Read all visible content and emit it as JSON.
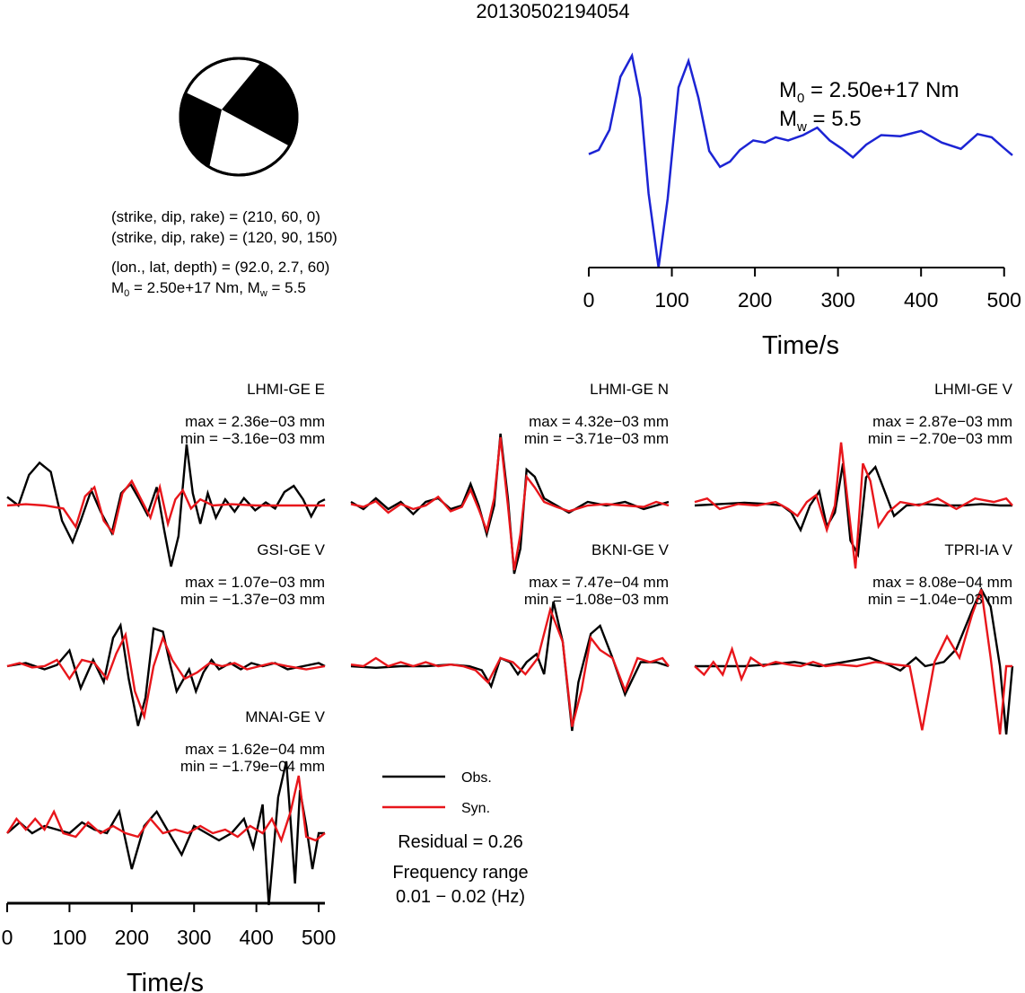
{
  "title": "20130502194054",
  "mechanism": {
    "plane1": "(strike, dip, rake) = (210, 60, 0)",
    "plane2": "(strike, dip, rake) = (120, 90, 150)",
    "location": "(lon., lat, depth) = (92.0, 2.7, 60)",
    "moment_prefix": "M",
    "moment_sub": "0",
    "moment_mid": " = 2.50e+17 Nm, M",
    "mw_sub": "w",
    "mw_suffix": " = 5.5"
  },
  "stf": {
    "m0_label": "M",
    "m0_sub": "0",
    "m0_value": " = 2.50e+17 Nm",
    "mw_label": "M",
    "mw_sub": "w",
    "mw_value": " = 5.5"
  },
  "legend": {
    "obs": "Obs.",
    "syn": "Syn.",
    "residual": "Residual = 0.26",
    "freq_title": "Frequency range",
    "freq_value": "0.01 − 0.02 (Hz)"
  },
  "colors": {
    "obs": "#000000",
    "syn": "#e8161b",
    "stf": "#1c24d4"
  },
  "chart_data": [
    {
      "type": "line",
      "name": "source-time-function",
      "xlabel": "Time/s",
      "xlim": [
        0,
        510
      ],
      "xticks": [
        0,
        100,
        200,
        300,
        400,
        500
      ],
      "series": [
        {
          "x": [
            0,
            12,
            25,
            38,
            52,
            62,
            72,
            84,
            95,
            108,
            120,
            132,
            145,
            158,
            170,
            182,
            198,
            212,
            225,
            240,
            258,
            275,
            290,
            305,
            318,
            334,
            352,
            375,
            400,
            425,
            448,
            468,
            485,
            498,
            510
          ],
          "y": [
            0.07,
            0.11,
            0.3,
            0.8,
            1.0,
            0.6,
            -0.3,
            -1.0,
            -0.35,
            0.7,
            0.95,
            0.6,
            0.1,
            -0.05,
            0.0,
            0.11,
            0.2,
            0.18,
            0.23,
            0.2,
            0.25,
            0.32,
            0.2,
            0.12,
            0.04,
            0.16,
            0.25,
            0.24,
            0.29,
            0.18,
            0.12,
            0.26,
            0.23,
            0.14,
            0.06
          ]
        }
      ]
    },
    {
      "type": "line",
      "name": "LHMI-GE E",
      "station": "LHMI-GE E",
      "max": "max = 2.36e−03 mm",
      "min": "min = −3.16e−03 mm",
      "xlim": [
        0,
        510
      ],
      "obs": {
        "x": [
          0,
          18,
          35,
          52,
          70,
          88,
          105,
          118,
          135,
          150,
          168,
          183,
          198,
          212,
          225,
          240,
          252,
          263,
          275,
          280,
          288,
          298,
          310,
          322,
          335,
          350,
          365,
          380,
          398,
          415,
          430,
          445,
          460,
          475,
          488,
          500,
          510
        ],
        "y": [
          0.14,
          0.0,
          0.5,
          0.7,
          0.55,
          -0.25,
          -0.6,
          -0.25,
          0.25,
          -0.1,
          -0.45,
          0.2,
          0.35,
          0.1,
          -0.15,
          0.3,
          -0.4,
          -1.0,
          -0.5,
          0.1,
          1.0,
          0.2,
          -0.3,
          0.2,
          -0.2,
          0.1,
          -0.1,
          0.12,
          -0.08,
          0.05,
          -0.05,
          0.22,
          0.32,
          0.1,
          -0.18,
          0.05,
          0.1
        ]
      },
      "syn": {
        "x": [
          0,
          30,
          60,
          90,
          110,
          125,
          140,
          155,
          170,
          185,
          200,
          215,
          230,
          245,
          258,
          270,
          282,
          295,
          310,
          330,
          360,
          400,
          450,
          510
        ],
        "y": [
          0.0,
          0.02,
          0.0,
          -0.05,
          -0.35,
          0.15,
          0.3,
          -0.25,
          -0.45,
          0.2,
          0.4,
          0.1,
          -0.2,
          0.3,
          -0.3,
          0.1,
          0.25,
          -0.05,
          0.1,
          0.0,
          0.02,
          0.0,
          0.0,
          0.0
        ]
      }
    },
    {
      "type": "line",
      "name": "LHMI-GE N",
      "station": "LHMI-GE N",
      "max": "max = 4.32e−03 mm",
      "min": "min = −3.71e−03 mm",
      "xlim": [
        0,
        510
      ],
      "obs": {
        "x": [
          0,
          20,
          40,
          60,
          80,
          100,
          120,
          140,
          160,
          178,
          192,
          205,
          218,
          230,
          240,
          252,
          262,
          272,
          282,
          295,
          310,
          330,
          350,
          380,
          410,
          440,
          470,
          490,
          510
        ],
        "y": [
          0.05,
          -0.05,
          0.1,
          -0.05,
          0.05,
          -0.12,
          0.05,
          0.1,
          -0.05,
          0.0,
          0.3,
          0.0,
          -0.4,
          0.0,
          1.0,
          0.1,
          -0.95,
          -0.6,
          0.5,
          0.4,
          0.1,
          0.0,
          -0.1,
          0.05,
          0.0,
          0.05,
          -0.05,
          0.0,
          0.05
        ]
      },
      "syn": {
        "x": [
          0,
          20,
          40,
          60,
          80,
          100,
          120,
          140,
          160,
          178,
          192,
          205,
          218,
          230,
          240,
          252,
          262,
          272,
          282,
          295,
          310,
          330,
          350,
          380,
          410,
          440,
          470,
          490,
          510
        ],
        "y": [
          0.02,
          -0.02,
          0.06,
          -0.1,
          0.02,
          -0.05,
          0.0,
          0.12,
          -0.08,
          -0.02,
          0.22,
          -0.05,
          -0.35,
          0.1,
          0.95,
          0.0,
          -0.9,
          -0.4,
          0.4,
          0.25,
          0.05,
          -0.02,
          -0.08,
          0.0,
          0.02,
          0.0,
          -0.02,
          0.05,
          0.0
        ]
      }
    },
    {
      "type": "line",
      "name": "LHMI-GE V",
      "station": "LHMI-GE V",
      "max": "max = 2.87e−03 mm",
      "min": "min = −2.70e−03 mm",
      "xlim": [
        0,
        510
      ],
      "obs": {
        "x": [
          0,
          40,
          80,
          120,
          140,
          155,
          170,
          185,
          200,
          212,
          225,
          238,
          250,
          262,
          275,
          290,
          305,
          320,
          340,
          370,
          400,
          430,
          460,
          490,
          510
        ],
        "y": [
          0.0,
          0.02,
          0.04,
          0.02,
          0.0,
          -0.1,
          -0.35,
          0.0,
          0.2,
          -0.3,
          -0.1,
          0.6,
          -0.5,
          -0.7,
          0.4,
          0.55,
          0.2,
          -0.15,
          0.0,
          0.02,
          0.0,
          0.0,
          0.02,
          0.0,
          0.0
        ]
      },
      "syn": {
        "x": [
          0,
          20,
          40,
          70,
          100,
          130,
          150,
          165,
          180,
          195,
          212,
          225,
          235,
          245,
          258,
          270,
          282,
          295,
          310,
          330,
          360,
          390,
          420,
          450,
          480,
          500,
          510
        ],
        "y": [
          0.05,
          0.1,
          -0.05,
          0.02,
          0.0,
          0.05,
          -0.05,
          -0.15,
          0.05,
          0.15,
          -0.35,
          0.0,
          0.9,
          0.1,
          -0.9,
          0.6,
          0.35,
          -0.3,
          -0.1,
          0.05,
          0.0,
          0.1,
          -0.05,
          0.1,
          0.05,
          0.1,
          0.0
        ]
      }
    },
    {
      "type": "line",
      "name": "GSI-GE V",
      "station": "GSI-GE V",
      "max": "max = 1.07e−03 mm",
      "min": "min = −1.37e−03 mm",
      "xlim": [
        0,
        510
      ],
      "obs": {
        "x": [
          0,
          30,
          60,
          80,
          100,
          118,
          138,
          155,
          170,
          182,
          195,
          210,
          222,
          235,
          250,
          260,
          272,
          292,
          303,
          315,
          328,
          340,
          358,
          375,
          392,
          410,
          430,
          450,
          475,
          500,
          510
        ],
        "y": [
          0.0,
          0.05,
          -0.05,
          0.02,
          0.25,
          -0.35,
          0.1,
          -0.25,
          0.45,
          0.65,
          -0.2,
          -0.95,
          -0.5,
          0.6,
          0.55,
          0.1,
          -0.4,
          -0.05,
          -0.4,
          -0.1,
          0.1,
          -0.05,
          0.05,
          -0.05,
          0.05,
          0.0,
          0.05,
          -0.05,
          0.0,
          0.05,
          0.0
        ]
      },
      "syn": {
        "x": [
          0,
          20,
          40,
          60,
          80,
          100,
          120,
          140,
          160,
          175,
          190,
          205,
          220,
          235,
          250,
          265,
          285,
          305,
          325,
          345,
          365,
          385,
          405,
          425,
          450,
          480,
          510
        ],
        "y": [
          0.0,
          0.05,
          -0.02,
          0.0,
          0.1,
          -0.2,
          0.1,
          0.05,
          -0.2,
          0.2,
          0.5,
          -0.4,
          -0.8,
          0.0,
          0.45,
          0.1,
          -0.2,
          -0.1,
          0.05,
          0.0,
          0.05,
          -0.05,
          0.0,
          0.05,
          0.0,
          -0.05,
          0.0
        ]
      }
    },
    {
      "type": "line",
      "name": "BKNI-GE V",
      "station": "BKNI-GE V",
      "max": "max = 7.47e−04 mm",
      "min": "min = −1.08e−03 mm",
      "xlim": [
        0,
        510
      ],
      "obs": {
        "x": [
          0,
          40,
          80,
          120,
          160,
          190,
          210,
          225,
          240,
          255,
          268,
          282,
          298,
          310,
          325,
          340,
          355,
          365,
          385,
          400,
          420,
          440,
          465,
          490,
          510
        ],
        "y": [
          0.0,
          -0.02,
          0.0,
          0.0,
          0.02,
          0.0,
          -0.05,
          -0.25,
          0.1,
          0.05,
          -0.1,
          0.05,
          0.15,
          -0.1,
          0.8,
          0.3,
          -0.8,
          -0.2,
          0.4,
          0.5,
          0.1,
          -0.35,
          0.05,
          0.05,
          0.0
        ]
      },
      "syn": {
        "x": [
          0,
          20,
          40,
          60,
          80,
          100,
          120,
          140,
          160,
          180,
          200,
          220,
          240,
          260,
          280,
          300,
          320,
          340,
          355,
          370,
          385,
          400,
          420,
          440,
          460,
          480,
          500,
          510
        ],
        "y": [
          0.02,
          0.0,
          0.1,
          0.0,
          0.05,
          0.0,
          0.05,
          0.0,
          0.02,
          0.0,
          -0.05,
          -0.2,
          0.1,
          0.05,
          -0.1,
          0.1,
          0.7,
          0.3,
          -0.75,
          -0.3,
          0.35,
          0.2,
          0.1,
          -0.3,
          0.1,
          0.05,
          0.1,
          0.0
        ]
      }
    },
    {
      "type": "line",
      "name": "TPRI-IA V",
      "station": "TPRI-IA V",
      "max": "max = 8.08e−04 mm",
      "min": "min = −1.04e−03 mm",
      "xlim": [
        0,
        510
      ],
      "obs": {
        "x": [
          0,
          40,
          80,
          120,
          160,
          200,
          240,
          280,
          310,
          330,
          355,
          370,
          400,
          420,
          445,
          460,
          475,
          490,
          500,
          510
        ],
        "y": [
          0.0,
          0.0,
          0.0,
          0.02,
          0.05,
          0.0,
          0.05,
          0.1,
          0.02,
          -0.05,
          0.1,
          0.0,
          0.05,
          0.2,
          0.65,
          0.9,
          0.7,
          0.0,
          -0.8,
          0.0
        ]
      },
      "syn": {
        "x": [
          0,
          15,
          30,
          45,
          60,
          75,
          90,
          110,
          130,
          150,
          170,
          190,
          210,
          230,
          260,
          290,
          320,
          345,
          365,
          385,
          405,
          425,
          445,
          460,
          475,
          490,
          500,
          510
        ],
        "y": [
          0.0,
          -0.1,
          0.05,
          -0.1,
          0.2,
          -0.15,
          0.1,
          0.0,
          0.05,
          0.02,
          0.0,
          0.05,
          0.0,
          0.02,
          0.0,
          0.05,
          0.02,
          0.0,
          -0.75,
          0.05,
          0.35,
          0.1,
          0.6,
          0.9,
          0.1,
          -0.8,
          0.0,
          0.0
        ]
      }
    },
    {
      "type": "line",
      "name": "MNAI-GE V",
      "station": "MNAI-GE V",
      "max": "max = 1.62e−04 mm",
      "min": "min = −1.79e−04 mm",
      "xlabel": "Time/s",
      "xlim": [
        0,
        510
      ],
      "xticks": [
        0,
        100,
        200,
        300,
        400,
        500
      ],
      "obs": {
        "x": [
          0,
          20,
          40,
          60,
          80,
          100,
          120,
          140,
          160,
          180,
          200,
          220,
          240,
          260,
          280,
          300,
          320,
          340,
          360,
          380,
          395,
          410,
          420,
          435,
          448,
          462,
          470,
          480,
          490,
          500,
          510
        ],
        "y": [
          0.0,
          0.15,
          0.0,
          0.1,
          0.05,
          0.0,
          0.15,
          0.05,
          0.0,
          0.3,
          -0.5,
          0.1,
          0.3,
          0.0,
          -0.3,
          0.1,
          0.0,
          -0.1,
          0.0,
          0.2,
          -0.2,
          0.4,
          -1.0,
          0.5,
          1.0,
          -0.7,
          0.6,
          0.1,
          -0.5,
          0.0,
          0.0
        ]
      },
      "syn": {
        "x": [
          0,
          15,
          30,
          45,
          60,
          75,
          90,
          110,
          130,
          150,
          170,
          190,
          210,
          230,
          250,
          270,
          290,
          310,
          330,
          350,
          370,
          390,
          410,
          425,
          440,
          455,
          468,
          480,
          495,
          510
        ],
        "y": [
          0.0,
          0.2,
          0.05,
          0.2,
          0.05,
          0.3,
          0.0,
          -0.05,
          0.15,
          0.0,
          0.1,
          0.0,
          -0.05,
          0.2,
          0.0,
          0.05,
          0.0,
          0.1,
          0.0,
          0.05,
          -0.05,
          0.1,
          0.0,
          0.2,
          -0.1,
          0.3,
          0.8,
          -0.05,
          -0.1,
          0.0
        ]
      }
    }
  ]
}
